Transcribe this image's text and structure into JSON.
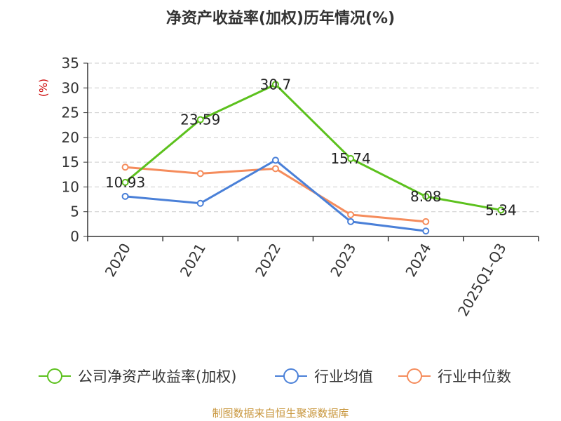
{
  "chart_data": {
    "type": "line",
    "title": "净资产收益率(加权)历年情况(%)",
    "ylabel": "(%)",
    "xlabel": "",
    "categories": [
      "2020",
      "2021",
      "2022",
      "2023",
      "2024",
      "2025Q1-Q3"
    ],
    "ylim": [
      0,
      35
    ],
    "yticks": [
      0,
      5,
      10,
      15,
      20,
      25,
      30,
      35
    ],
    "grid": true,
    "legend_position": "bottom",
    "series": [
      {
        "name": "公司净资产收益率(加权)",
        "color": "#5cc11d",
        "values": [
          10.93,
          23.59,
          30.7,
          15.74,
          8.08,
          5.34
        ],
        "labels": [
          "10.93",
          "23.59",
          "30.7",
          "15.74",
          "8.08",
          "5.34"
        ]
      },
      {
        "name": "行业均值",
        "color": "#4a80d8",
        "values": [
          8.1,
          6.7,
          15.4,
          3.0,
          1.1,
          null
        ]
      },
      {
        "name": "行业中位数",
        "color": "#f58c5c",
        "values": [
          14.0,
          12.7,
          13.7,
          4.4,
          3.0,
          null
        ]
      }
    ]
  },
  "footer": {
    "source": "制图数据来自恒生聚源数据库"
  },
  "colors": {
    "axis": "#333333",
    "grid": "#cccccc",
    "title": "#333333",
    "ylabel": "#cc0000",
    "source": "#c8963c"
  }
}
